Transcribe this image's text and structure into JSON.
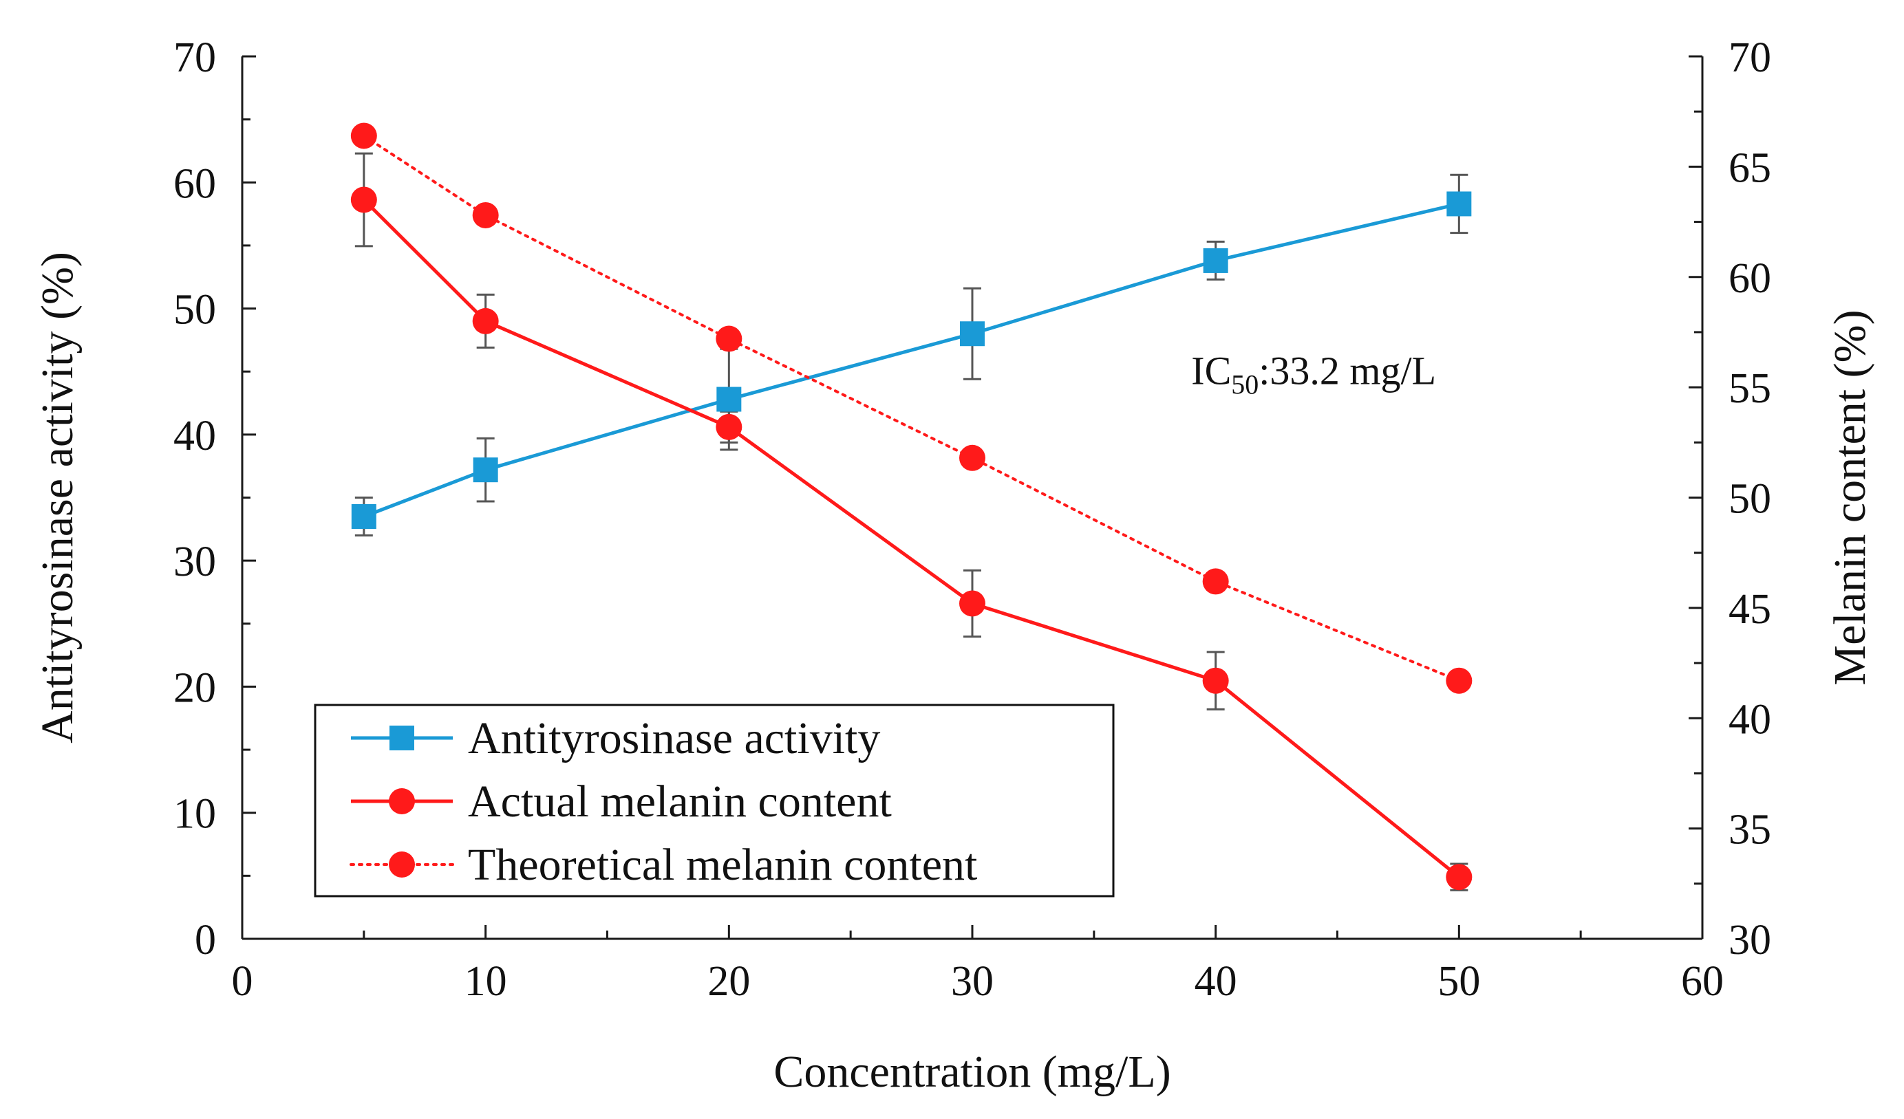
{
  "chart_data": {
    "type": "line",
    "xlabel": "Concentration  (mg/L)",
    "ylabel": "Antityrosinase  activity  (%)",
    "y2label": "Melanin content  (%)",
    "xlim": [
      0,
      60
    ],
    "ylim": [
      0,
      70
    ],
    "y2lim": [
      30,
      70
    ],
    "xticks": [
      0,
      10,
      20,
      30,
      40,
      50,
      60
    ],
    "xticks_minor": [
      5,
      15,
      25,
      35,
      45,
      55
    ],
    "yticks": [
      0,
      10,
      20,
      30,
      40,
      50,
      60,
      70
    ],
    "yticks_minor": [
      5,
      15,
      25,
      35,
      45,
      55,
      65
    ],
    "y2ticks": [
      30,
      35,
      40,
      45,
      50,
      55,
      60,
      65,
      70
    ],
    "y2ticks_minor": [
      32.5,
      37.5,
      42.5,
      47.5,
      52.5,
      57.5,
      62.5,
      67.5
    ],
    "grid": false,
    "legend_position": "lower-left",
    "annotation": {
      "prefix": "IC",
      "subscript": "50",
      "suffix": ":33.2 mg/L",
      "x": 39,
      "y": 44
    },
    "series": [
      {
        "name": "Antityrosinase activity",
        "axis": "left",
        "color": "#1a9ad6",
        "marker": "square",
        "line_style": "solid",
        "x": [
          5,
          10,
          20,
          30,
          40,
          50
        ],
        "y": [
          33.5,
          37.2,
          42.8,
          48.0,
          53.8,
          58.3
        ],
        "error": [
          1.5,
          2.5,
          4.0,
          3.6,
          1.5,
          2.3
        ]
      },
      {
        "name": "Actual melanin content",
        "axis": "right",
        "color": "#ff1a1a",
        "marker": "circle",
        "line_style": "solid",
        "x": [
          5,
          10,
          20,
          30,
          40,
          50
        ],
        "y": [
          63.5,
          58.0,
          53.2,
          45.2,
          41.7,
          32.8
        ],
        "error": [
          2.1,
          1.2,
          0.7,
          1.5,
          1.3,
          0.6
        ]
      },
      {
        "name": "Theoretical melanin content",
        "axis": "right",
        "color": "#ff1a1a",
        "marker": "circle",
        "line_style": "dotted",
        "x": [
          5,
          10,
          20,
          30,
          40,
          50
        ],
        "y": [
          66.4,
          62.8,
          57.2,
          51.8,
          46.2,
          41.7
        ],
        "error": null
      }
    ]
  }
}
